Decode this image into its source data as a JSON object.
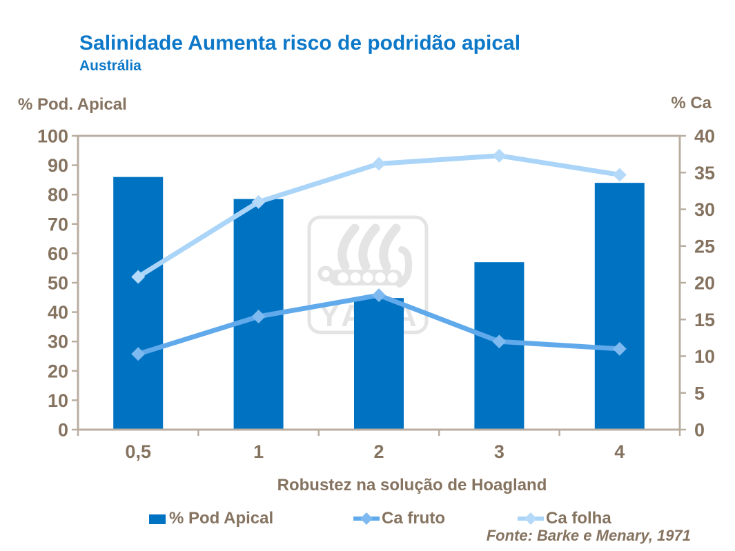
{
  "header": {
    "title": "Salinidade Aumenta risco de podridão apical",
    "subtitle": "Austrália"
  },
  "chart_data": {
    "type": "bar+line",
    "categories": [
      "0,5",
      "1",
      "2",
      "3",
      "4"
    ],
    "series": [
      {
        "name": "% Pod Apical",
        "kind": "bar",
        "axis": "left",
        "values": [
          86,
          78.5,
          44.8,
          57,
          84
        ]
      },
      {
        "name": "Ca fruto",
        "kind": "line",
        "axis": "right",
        "values": [
          10.3,
          15.4,
          18.3,
          12,
          11
        ]
      },
      {
        "name": "Ca folha",
        "kind": "line",
        "axis": "right",
        "values": [
          20.8,
          31,
          36.2,
          37.3,
          34.7
        ]
      }
    ],
    "title": "Salinidade Aumenta risco de podridão apical",
    "subtitle": "Austrália",
    "xlabel": "Robustez na solução de Hoagland",
    "ylabel_left": "% Pod. Apical",
    "ylabel_right": "% Ca",
    "ylim_left": [
      0,
      100
    ],
    "ylim_right": [
      0,
      40
    ],
    "yticks_left": [
      0,
      10,
      20,
      30,
      40,
      50,
      60,
      70,
      80,
      90,
      100
    ],
    "yticks_right": [
      0,
      5,
      10,
      15,
      20,
      25,
      30,
      35,
      40
    ],
    "grid": false,
    "legend_position": "bottom",
    "watermark": "YARA"
  },
  "footer": {
    "source": "Fonte: Barke e Menary, 1971"
  },
  "colors": {
    "title_blue": "#0d78c8",
    "bar_blue": "#0072c2",
    "fruto_line": "#60a9eb",
    "fruto_marker": "#7ebaf0",
    "folha_line": "#aad4f8",
    "folha_marker": "#b4d9f9",
    "axis_line": "#b9ada0",
    "text_brown": "#857360",
    "watermark_gray": "#e4e4e4"
  }
}
